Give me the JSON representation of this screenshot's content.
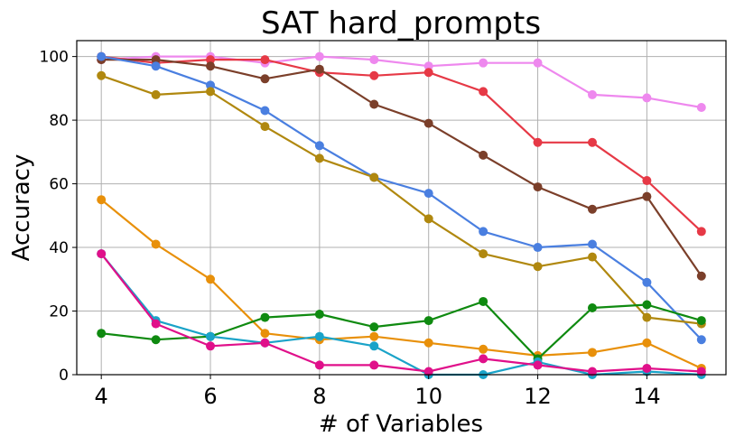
{
  "chart_data": {
    "type": "line",
    "title": "SAT hard_prompts",
    "xlabel": "# of Variables",
    "ylabel": "Accuracy",
    "xlim": [
      3.55,
      15.45
    ],
    "ylim": [
      0,
      105
    ],
    "xticks": [
      4,
      6,
      8,
      10,
      12,
      14
    ],
    "yticks": [
      0,
      20,
      40,
      60,
      80,
      100
    ],
    "grid": true,
    "legend": "none",
    "x": [
      4,
      5,
      6,
      7,
      8,
      9,
      10,
      11,
      12,
      13,
      14,
      15
    ],
    "series": [
      {
        "color": "#e8e",
        "values": [
          99,
          100,
          100,
          98,
          100,
          99,
          97,
          98,
          98,
          88,
          87,
          84
        ]
      },
      {
        "color": "#e63946",
        "values": [
          100,
          98,
          99,
          99,
          95,
          94,
          95,
          89,
          73,
          73,
          61,
          45
        ]
      },
      {
        "color": "#7b3f2a",
        "values": [
          99,
          99,
          97,
          93,
          96,
          85,
          79,
          69,
          59,
          52,
          56,
          31
        ]
      },
      {
        "color": "#4a7fe0",
        "values": [
          100,
          97,
          91,
          83,
          72,
          62,
          57,
          45,
          40,
          41,
          29,
          11
        ]
      },
      {
        "color": "#b0880f",
        "values": [
          94,
          88,
          89,
          78,
          68,
          62,
          49,
          38,
          34,
          37,
          18,
          16
        ]
      },
      {
        "color": "#e8900a",
        "values": [
          55,
          41,
          30,
          13,
          11,
          12,
          10,
          8,
          6,
          7,
          10,
          2
        ]
      },
      {
        "color": "#0f8a10",
        "values": [
          13,
          11,
          12,
          18,
          19,
          15,
          17,
          23,
          5,
          21,
          22,
          17
        ]
      },
      {
        "color": "#1aa3c8",
        "values": [
          38,
          17,
          12,
          10,
          12,
          9,
          0,
          0,
          4,
          0,
          1,
          0
        ]
      },
      {
        "color": "#e0108a",
        "values": [
          38,
          16,
          9,
          10,
          3,
          3,
          1,
          5,
          3,
          1,
          2,
          1
        ]
      }
    ]
  }
}
